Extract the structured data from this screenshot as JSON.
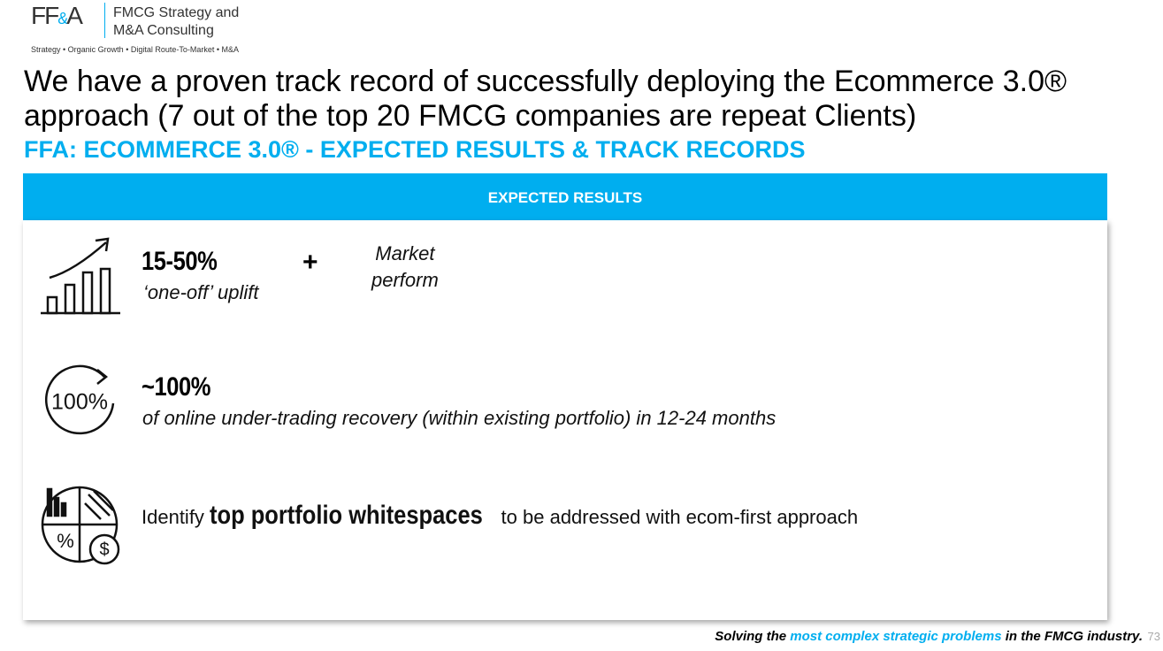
{
  "header": {
    "logo": [
      "FF",
      "&",
      "A"
    ],
    "company": [
      "FMCG Strategy and",
      "M&A Consulting"
    ],
    "tagline": "Strategy • Organic Growth • Digital Route-To-Market • M&A"
  },
  "title": [
    "We have a proven track record of successfully deploying the Ecommerce 3.0®",
    "approach (7 out of the top 20 FMCG companies are repeat Clients)"
  ],
  "subtitle": "FFA: ECOMMERCE 3.0® - EXPECTED RESULTS & TRACK RECORDS",
  "panel": {
    "header": "EXPECTED RESULTS",
    "items": [
      {
        "value": "15-50%",
        "note": "‘one-off’ uplift",
        "plus": "+",
        "extra": [
          "Market",
          "perform"
        ]
      },
      {
        "icon_label": "100%",
        "value": "~100%",
        "note": "of online under-trading recovery (within existing portfolio) in 12-24 months"
      },
      {
        "icon_labels": [
          "%",
          "$"
        ],
        "before": "Identify",
        "emphasis": "top portfolio whitespaces",
        "after": "to be addressed with ecom-first approach"
      }
    ]
  },
  "footer": {
    "before": "Solving the",
    "highlight": "most complex strategic problems",
    "after": "in the FMCG industry.",
    "page": 73
  }
}
